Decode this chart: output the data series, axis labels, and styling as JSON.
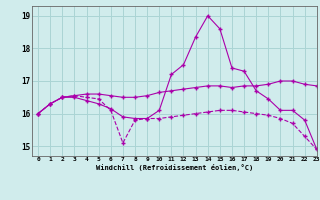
{
  "x": [
    0,
    1,
    2,
    3,
    4,
    5,
    6,
    7,
    8,
    9,
    10,
    11,
    12,
    13,
    14,
    15,
    16,
    17,
    18,
    19,
    20,
    21,
    22,
    23
  ],
  "line1": [
    16.0,
    16.3,
    16.5,
    16.5,
    16.4,
    16.3,
    16.15,
    15.9,
    15.85,
    15.85,
    16.1,
    17.2,
    17.5,
    18.35,
    19.0,
    18.6,
    17.4,
    17.3,
    16.7,
    16.45,
    16.1,
    16.1,
    15.8,
    14.9
  ],
  "line2": [
    16.0,
    16.3,
    16.5,
    16.55,
    16.6,
    16.6,
    16.55,
    16.5,
    16.5,
    16.55,
    16.65,
    16.7,
    16.75,
    16.8,
    16.85,
    16.85,
    16.8,
    16.85,
    16.85,
    16.9,
    17.0,
    17.0,
    16.9,
    16.85
  ],
  "line3": [
    16.0,
    16.3,
    16.5,
    16.55,
    16.5,
    16.45,
    16.1,
    15.1,
    15.8,
    15.85,
    15.85,
    15.9,
    15.95,
    16.0,
    16.05,
    16.1,
    16.1,
    16.05,
    16.0,
    15.95,
    15.85,
    15.7,
    15.3,
    14.9
  ],
  "color": "#aa00aa",
  "bg_color": "#d0ecec",
  "grid_color": "#aad4d4",
  "xlabel": "Windchill (Refroidissement éolien,°C)",
  "ylim": [
    14.7,
    19.3
  ],
  "xlim": [
    -0.5,
    23
  ],
  "yticks": [
    15,
    16,
    17,
    18,
    19
  ],
  "xtick_labels": [
    "0",
    "1",
    "2",
    "3",
    "4",
    "5",
    "6",
    "7",
    "8",
    "9",
    "10",
    "11",
    "12",
    "13",
    "14",
    "15",
    "16",
    "17",
    "18",
    "19",
    "20",
    "21",
    "22",
    "23"
  ]
}
